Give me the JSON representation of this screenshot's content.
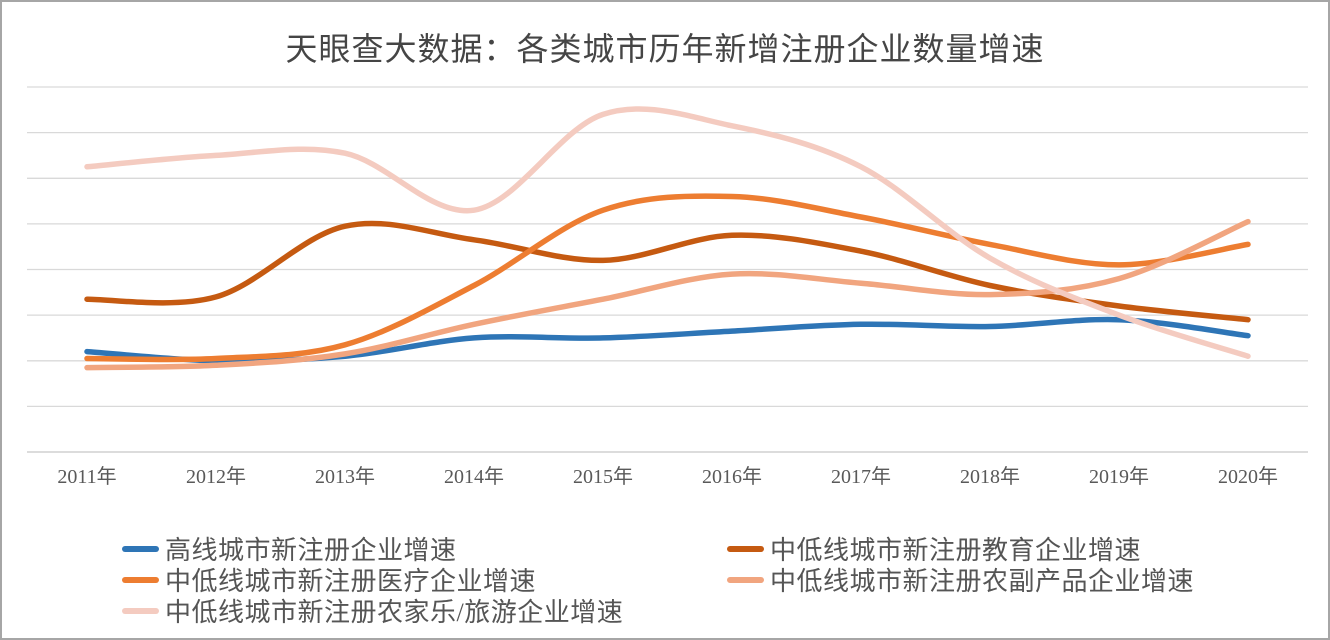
{
  "chart_data": {
    "type": "line",
    "title": "天眼查大数据：各类城市历年新增注册企业数量增速",
    "xlabel": "",
    "ylabel": "",
    "x_labels": [
      "2011年",
      "2012年",
      "2013年",
      "2014年",
      "2015年",
      "2016年",
      "2017年",
      "2018年",
      "2019年",
      "2020年"
    ],
    "y_axis_note": "no numeric y-axis labels shown; values estimated in gridline units (bottom axis = 0, each gridline = 1)",
    "ylim": [
      0,
      8
    ],
    "grid": "horizontal gridlines on, 8 above baseline",
    "gridline_color": "#d9d9d9",
    "axis_line_color": "#c6c6c6",
    "legend_position": "bottom, two columns",
    "series": [
      {
        "name": "高线城市新注册企业增速",
        "color": "#2e75b6",
        "values": [
          2.2,
          2.0,
          2.1,
          2.5,
          2.5,
          2.65,
          2.8,
          2.75,
          2.9,
          2.55
        ]
      },
      {
        "name": "中低线城市新注册教育企业增速",
        "color": "#c55a11",
        "values": [
          3.35,
          3.4,
          4.95,
          4.65,
          4.2,
          4.75,
          4.4,
          3.65,
          3.2,
          2.9
        ]
      },
      {
        "name": "中低线城市新注册医疗企业增速",
        "color": "#ed7d31",
        "values": [
          2.05,
          2.05,
          2.35,
          3.65,
          5.3,
          5.6,
          5.15,
          4.55,
          4.1,
          4.55
        ]
      },
      {
        "name": "中低线城市新注册农副产品企业增速",
        "color": "#f1a57f",
        "values": [
          1.85,
          1.9,
          2.15,
          2.8,
          3.35,
          3.9,
          3.7,
          3.45,
          3.8,
          5.05
        ]
      },
      {
        "name": "中低线城市新注册农家乐/旅游企业增速",
        "color": "#f4cbc0",
        "values": [
          6.25,
          6.5,
          6.55,
          5.3,
          7.4,
          7.15,
          6.25,
          4.25,
          3.0,
          2.1
        ]
      }
    ]
  },
  "legend": {
    "items": [
      {
        "label": "高线城市新注册企业增速",
        "color": "#2e75b6"
      },
      {
        "label": "中低线城市新注册教育企业增速",
        "color": "#c55a11"
      },
      {
        "label": "中低线城市新注册医疗企业增速",
        "color": "#ed7d31"
      },
      {
        "label": "中低线城市新注册农副产品企业增速",
        "color": "#f1a57f"
      },
      {
        "label": "中低线城市新注册农家乐/旅游企业增速",
        "color": "#f4cbc0"
      }
    ]
  }
}
